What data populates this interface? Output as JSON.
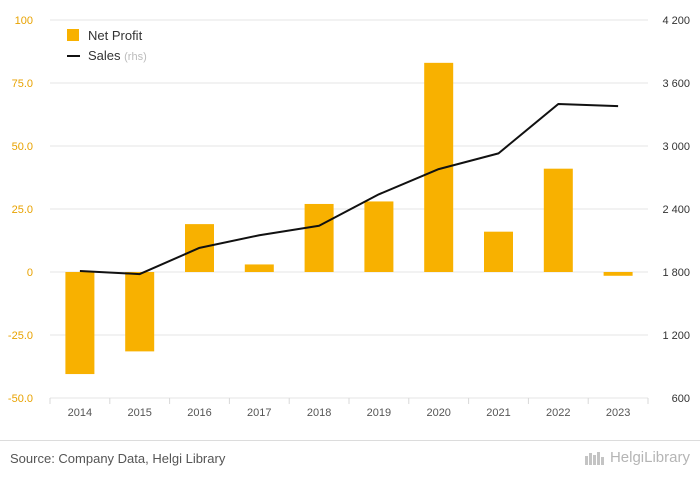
{
  "chart_data": {
    "type": "bar+line",
    "categories": [
      "2014",
      "2015",
      "2016",
      "2017",
      "2018",
      "2019",
      "2020",
      "2021",
      "2022",
      "2023"
    ],
    "series": [
      {
        "name": "Net Profit",
        "axis": "left",
        "type": "bar",
        "values": [
          -40.5,
          -31.5,
          19.0,
          3.0,
          27.0,
          28.0,
          83.0,
          16.0,
          41.0,
          -1.5
        ]
      },
      {
        "name": "Sales",
        "axis": "right",
        "type": "line",
        "values": [
          1810,
          1780,
          2030,
          2150,
          2240,
          2540,
          2780,
          2930,
          3400,
          3380
        ]
      }
    ],
    "left_axis": {
      "min": -50,
      "max": 100,
      "ticks": [
        "-50.0",
        "-25.0",
        "0",
        "25.0",
        "50.0",
        "75.0",
        "100"
      ]
    },
    "right_axis": {
      "min": 600,
      "max": 4200,
      "ticks": [
        "600",
        "1 200",
        "1 800",
        "2 400",
        "3 000",
        "3 600",
        "4 200"
      ]
    },
    "legend": {
      "position": "top-left",
      "items": [
        {
          "label": "Net Profit"
        },
        {
          "label": "Sales",
          "suffix": "(rhs)"
        }
      ]
    },
    "colors": {
      "bar": "#f8b100",
      "line": "#111111",
      "grid": "#e6e6e6",
      "left_tick": "#e8a200",
      "right_tick": "#333333"
    }
  },
  "footer": {
    "source": "Source: Company Data, Helgi Library",
    "brand": "HelgiLibrary"
  }
}
